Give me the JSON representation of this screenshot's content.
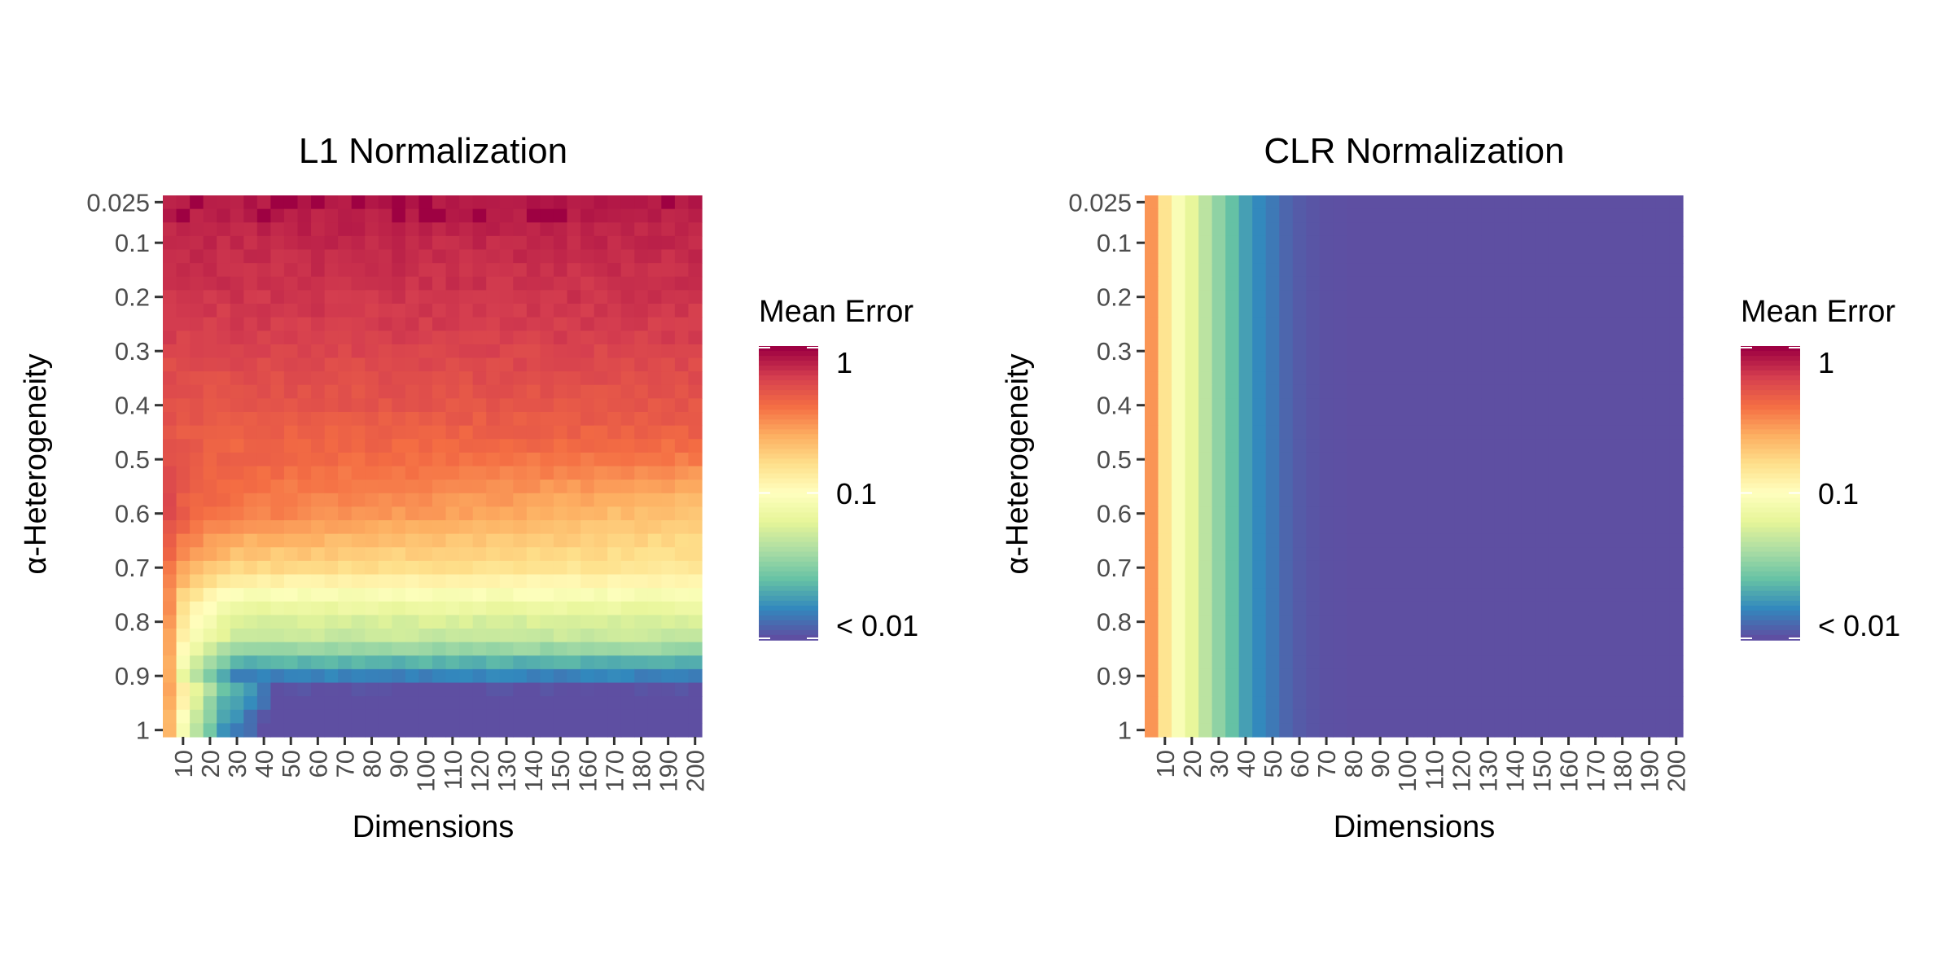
{
  "chart_data": [
    {
      "type": "heatmap",
      "title": "L1 Normalization",
      "xlabel": "Dimensions",
      "ylabel": "α-Heterogeneity",
      "x_ticks": [
        "10",
        "20",
        "30",
        "40",
        "50",
        "60",
        "70",
        "80",
        "90",
        "100",
        "110",
        "120",
        "130",
        "140",
        "150",
        "160",
        "170",
        "180",
        "190",
        "200"
      ],
      "y_ticks": [
        "0.025",
        "0.1",
        "0.2",
        "0.3",
        "0.4",
        "0.5",
        "0.6",
        "0.7",
        "0.8",
        "0.9",
        "1"
      ],
      "x_range": [
        5,
        200
      ],
      "y_range": [
        0.025,
        1
      ],
      "y_reversed": true,
      "value_scale": "log",
      "legend": {
        "title": "Mean Error",
        "labels": [
          "1",
          "0.1",
          "< 0.01"
        ],
        "values": [
          1,
          0.1,
          0.01
        ]
      },
      "colormap": "Spectral (reversed)",
      "pattern": "High error (~0.5–1) for low α at all dimensions; error falls with α, reaching ~0.05 near α=0.8 and <0.01 for α≈0.95–1 when dimensions ≥ 30; low dimensions (<15) stay ~0.2–0.3"
    },
    {
      "type": "heatmap",
      "title": "CLR Normalization",
      "xlabel": "Dimensions",
      "ylabel": "α-Heterogeneity",
      "x_ticks": [
        "10",
        "20",
        "30",
        "40",
        "50",
        "60",
        "70",
        "80",
        "90",
        "100",
        "110",
        "120",
        "130",
        "140",
        "150",
        "160",
        "170",
        "180",
        "190",
        "200"
      ],
      "y_ticks": [
        "0.025",
        "0.1",
        "0.2",
        "0.3",
        "0.4",
        "0.5",
        "0.6",
        "0.7",
        "0.8",
        "0.9",
        "1"
      ],
      "x_range": [
        5,
        200
      ],
      "y_range": [
        0.025,
        1
      ],
      "y_reversed": true,
      "value_scale": "log",
      "legend": {
        "title": "Mean Error",
        "labels": [
          "1",
          "0.1",
          "< 0.01"
        ],
        "values": [
          1,
          0.1,
          0.01
        ]
      },
      "colormap": "Spectral (reversed)",
      "column_errors": [
        {
          "dim": 5,
          "error": 0.3
        },
        {
          "dim": 10,
          "error": 0.15
        },
        {
          "dim": 15,
          "error": 0.09
        },
        {
          "dim": 20,
          "error": 0.065
        },
        {
          "dim": 25,
          "error": 0.045
        },
        {
          "dim": 30,
          "error": 0.033
        },
        {
          "dim": 35,
          "error": 0.025
        },
        {
          "dim": 40,
          "error": 0.019
        },
        {
          "dim": 45,
          "error": 0.016
        },
        {
          "dim": 50,
          "error": 0.014
        },
        {
          "dim": 55,
          "error": 0.012
        },
        {
          "dim": 60,
          "error": 0.011
        },
        {
          "dim": 65,
          "error": 0.0105
        },
        {
          "dim": 70,
          "error": 0.0102
        },
        {
          "dim": 75,
          "error": 0.0101
        },
        {
          "dim": 80,
          "error": 0.01
        },
        {
          "dim": 200,
          "error": 0.01
        }
      ],
      "pattern": "Error depends only on dimensions: ~0.3 at 5 decreasing to <0.01 for dimensions ≥ 80"
    }
  ]
}
